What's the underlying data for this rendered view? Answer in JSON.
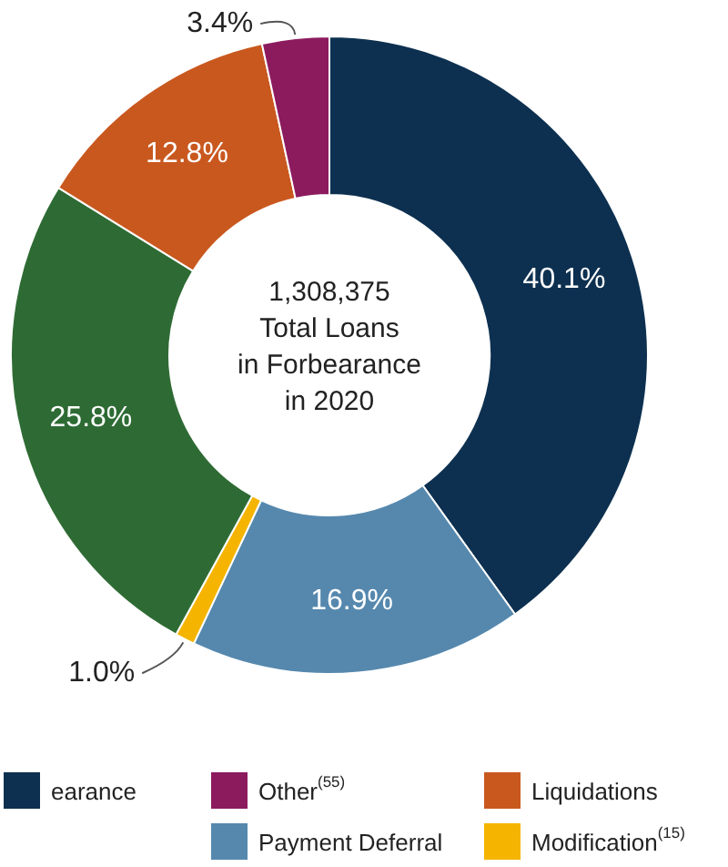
{
  "chart_data": {
    "type": "donut",
    "categories": [
      "earance",
      "Payment Deferral",
      "Modification$^{(15)}$",
      null,
      "Liquidations",
      "Other$^{(55)}$"
    ],
    "values": [
      40.1,
      16.9,
      1.0,
      25.8,
      12.8,
      3.4
    ],
    "colors": [
      "#0d3050",
      "#5688ae",
      "#f5b400",
      "#2e6b34",
      "#c9581f",
      "#8c1b5e"
    ],
    "value_labels": [
      "40.1%",
      "16.9%",
      "1.0%",
      "25.8%",
      "12.8%",
      "3.4%"
    ],
    "annotations": [
      "1,308,375\nTotal Loans\nin Forbearance\nin 2020"
    ],
    "legend": "bottom"
  }
}
